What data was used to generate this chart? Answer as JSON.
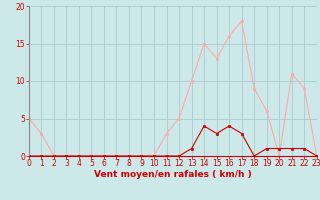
{
  "x": [
    0,
    1,
    2,
    3,
    4,
    5,
    6,
    7,
    8,
    9,
    10,
    11,
    12,
    13,
    14,
    15,
    16,
    17,
    18,
    19,
    20,
    21,
    22,
    23
  ],
  "y_moyen": [
    0,
    0,
    0,
    0,
    0,
    0,
    0,
    0,
    0,
    0,
    0,
    0,
    0,
    1,
    4,
    3,
    4,
    3,
    0,
    1,
    1,
    1,
    1,
    0
  ],
  "y_rafales": [
    5,
    3,
    0,
    0,
    0,
    0,
    0,
    0,
    0,
    0,
    0,
    3,
    5,
    10,
    15,
    13,
    16,
    18,
    9,
    6,
    0,
    11,
    9,
    0
  ],
  "color_moyen": "#cc0000",
  "color_rafales": "#ffaaaa",
  "bg_color": "#cce8e8",
  "grid_color": "#aacccc",
  "tick_color": "#cc0000",
  "xlabel": "Vent moyen/en rafales ( km/h )",
  "xlabel_color": "#cc0000",
  "yticks": [
    0,
    5,
    10,
    15,
    20
  ],
  "xticks": [
    0,
    1,
    2,
    3,
    4,
    5,
    6,
    7,
    8,
    9,
    10,
    11,
    12,
    13,
    14,
    15,
    16,
    17,
    18,
    19,
    20,
    21,
    22,
    23
  ],
  "ylim": [
    0,
    20
  ],
  "xlim": [
    0,
    23
  ]
}
